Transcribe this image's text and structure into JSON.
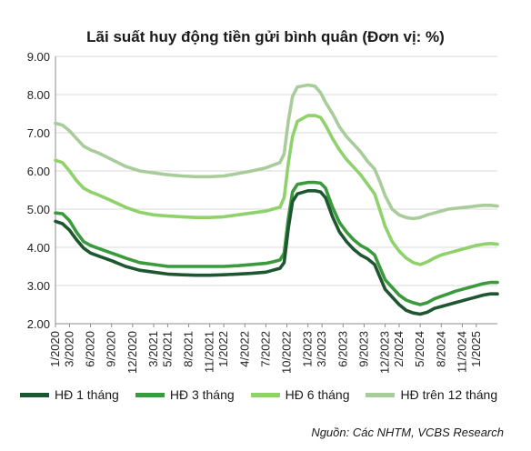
{
  "title": "Lãi suất huy động tiền gửi bình quân (Đơn vị: %)",
  "source": "Nguồn: Các NHTM, VCBS Research",
  "colors": {
    "grid": "#d9d9d9",
    "axis": "#8c8c8c"
  },
  "chart_data": {
    "type": "line",
    "title": "Lãi suất huy động tiền gửi bình quân (Đơn vị: %)",
    "ylim": [
      2.0,
      9.0
    ],
    "yticks": [
      "2.00",
      "3.00",
      "4.00",
      "5.00",
      "6.00",
      "7.00",
      "8.00",
      "9.00"
    ],
    "ytick_values": [
      2,
      3,
      4,
      5,
      6,
      7,
      8,
      9
    ],
    "xticks": [
      "1/2020",
      "3/2020",
      "6/2020",
      "9/2020",
      "12/2020",
      "3/2021",
      "5/2021",
      "8/2021",
      "11/2021",
      "1/2022",
      "4/2022",
      "7/2022",
      "10/2022",
      "1/2023",
      "3/2023",
      "6/2023",
      "9/2023",
      "12/2023",
      "2/2024",
      "5/2024",
      "8/2024",
      "11/2024",
      "1/2025"
    ],
    "xtick_months": [
      0,
      2,
      5,
      8,
      11,
      14,
      16,
      19,
      22,
      24,
      27,
      30,
      33,
      36,
      38,
      41,
      44,
      47,
      49,
      52,
      55,
      58,
      60
    ],
    "xlim_months": [
      0,
      63
    ],
    "grid": "horizontal",
    "legend_position": "bottom",
    "series": [
      {
        "name": "HĐ 1 tháng",
        "color": "#1e5631",
        "x_months": [
          0,
          1,
          2,
          3,
          4,
          5,
          6,
          8,
          10,
          12,
          14,
          16,
          18,
          20,
          22,
          24,
          26,
          28,
          30,
          31,
          32,
          32.6,
          33.2,
          33.8,
          34.5,
          36,
          37,
          37.8,
          38.5,
          39.5,
          40.5,
          41.5,
          42.5,
          43.5,
          44.5,
          45.5,
          46.3,
          47,
          48,
          49,
          50,
          51,
          52,
          53,
          54,
          55,
          56,
          57,
          58,
          59,
          60,
          61,
          62,
          63
        ],
        "values": [
          4.68,
          4.62,
          4.45,
          4.2,
          3.98,
          3.85,
          3.78,
          3.65,
          3.5,
          3.4,
          3.35,
          3.3,
          3.28,
          3.27,
          3.27,
          3.28,
          3.3,
          3.32,
          3.35,
          3.4,
          3.45,
          3.6,
          4.5,
          5.2,
          5.4,
          5.48,
          5.48,
          5.45,
          5.3,
          4.8,
          4.4,
          4.15,
          3.95,
          3.8,
          3.7,
          3.55,
          3.2,
          2.9,
          2.7,
          2.5,
          2.35,
          2.28,
          2.25,
          2.3,
          2.4,
          2.45,
          2.5,
          2.55,
          2.6,
          2.65,
          2.7,
          2.75,
          2.78,
          2.78
        ]
      },
      {
        "name": "HĐ 3 tháng",
        "color": "#3a9a3c",
        "x_months": [
          0,
          1,
          2,
          3,
          4,
          5,
          6,
          8,
          10,
          12,
          14,
          16,
          18,
          20,
          22,
          24,
          26,
          28,
          30,
          31,
          32,
          32.6,
          33.2,
          33.8,
          34.5,
          36,
          37,
          37.8,
          38.5,
          39.5,
          40.5,
          41.5,
          42.5,
          43.5,
          44.5,
          45.5,
          46.3,
          47,
          48,
          49,
          50,
          51,
          52,
          53,
          54,
          55,
          56,
          57,
          58,
          59,
          60,
          61,
          62,
          63
        ],
        "values": [
          4.9,
          4.88,
          4.7,
          4.4,
          4.15,
          4.05,
          3.98,
          3.85,
          3.72,
          3.6,
          3.55,
          3.5,
          3.5,
          3.5,
          3.5,
          3.5,
          3.52,
          3.55,
          3.58,
          3.62,
          3.67,
          3.85,
          4.75,
          5.45,
          5.65,
          5.7,
          5.7,
          5.68,
          5.55,
          5.05,
          4.65,
          4.4,
          4.2,
          4.05,
          3.95,
          3.8,
          3.45,
          3.15,
          2.95,
          2.75,
          2.62,
          2.55,
          2.5,
          2.55,
          2.65,
          2.72,
          2.78,
          2.85,
          2.9,
          2.95,
          3.0,
          3.05,
          3.08,
          3.08
        ]
      },
      {
        "name": "HĐ 6 tháng",
        "color": "#8fd16a",
        "x_months": [
          0,
          1,
          2,
          3,
          4,
          5,
          6,
          8,
          10,
          12,
          14,
          16,
          18,
          20,
          22,
          24,
          26,
          28,
          30,
          31,
          32,
          32.6,
          33.2,
          33.8,
          34.5,
          36,
          37,
          37.8,
          38.5,
          39.5,
          40.5,
          41.5,
          42.5,
          43.5,
          44.5,
          45.5,
          46.3,
          47,
          48,
          49,
          50,
          51,
          52,
          53,
          54,
          55,
          56,
          57,
          58,
          59,
          60,
          61,
          62,
          63
        ],
        "values": [
          6.28,
          6.22,
          6.0,
          5.75,
          5.55,
          5.45,
          5.38,
          5.22,
          5.05,
          4.92,
          4.85,
          4.82,
          4.8,
          4.78,
          4.78,
          4.8,
          4.85,
          4.9,
          4.95,
          5.0,
          5.05,
          5.3,
          6.2,
          6.9,
          7.3,
          7.45,
          7.45,
          7.4,
          7.2,
          6.85,
          6.55,
          6.3,
          6.1,
          5.9,
          5.65,
          5.4,
          4.95,
          4.55,
          4.15,
          3.9,
          3.72,
          3.6,
          3.55,
          3.62,
          3.72,
          3.8,
          3.85,
          3.9,
          3.95,
          4.0,
          4.05,
          4.08,
          4.1,
          4.08
        ]
      },
      {
        "name": "HĐ trên 12 tháng",
        "color": "#a9cd9a",
        "x_months": [
          0,
          1,
          2,
          3,
          4,
          5,
          6,
          8,
          10,
          12,
          14,
          16,
          18,
          20,
          22,
          24,
          26,
          28,
          30,
          31,
          32,
          32.6,
          33.2,
          33.8,
          34.5,
          36,
          37,
          37.8,
          38.5,
          39.5,
          40.5,
          41.5,
          42.5,
          43.5,
          44.5,
          45.5,
          46.3,
          47,
          48,
          49,
          50,
          51,
          52,
          53,
          54,
          55,
          56,
          57,
          58,
          59,
          60,
          61,
          62,
          63
        ],
        "values": [
          7.25,
          7.2,
          7.05,
          6.85,
          6.65,
          6.55,
          6.48,
          6.3,
          6.12,
          6.0,
          5.95,
          5.9,
          5.87,
          5.85,
          5.85,
          5.87,
          5.93,
          6.0,
          6.08,
          6.15,
          6.22,
          6.45,
          7.3,
          7.95,
          8.2,
          8.25,
          8.22,
          8.05,
          7.8,
          7.5,
          7.15,
          6.9,
          6.7,
          6.5,
          6.25,
          6.05,
          5.7,
          5.35,
          5.0,
          4.85,
          4.78,
          4.75,
          4.78,
          4.85,
          4.9,
          4.95,
          5.0,
          5.02,
          5.04,
          5.06,
          5.08,
          5.1,
          5.1,
          5.08
        ]
      }
    ]
  }
}
